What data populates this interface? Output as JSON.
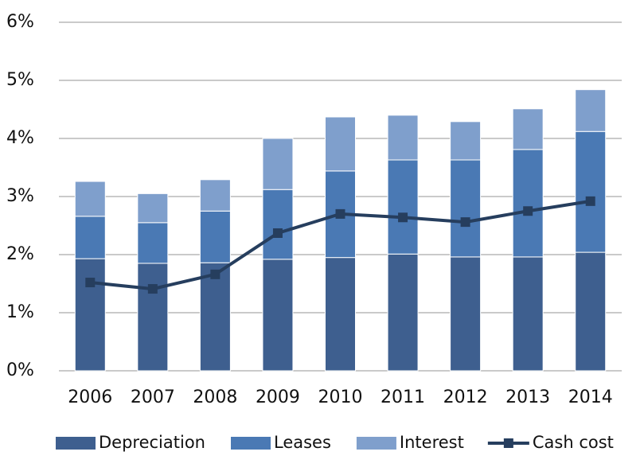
{
  "chart_data": {
    "type": "bar",
    "stacked": true,
    "categories": [
      "2006",
      "2007",
      "2008",
      "2009",
      "2010",
      "2011",
      "2012",
      "2013",
      "2014"
    ],
    "series": [
      {
        "name": "Depreciation",
        "type": "bar",
        "color": "#3e5f8f",
        "values": [
          1.93,
          1.85,
          1.86,
          1.92,
          1.95,
          2.01,
          1.96,
          1.96,
          2.04
        ]
      },
      {
        "name": "Leases",
        "type": "bar",
        "color": "#4a79b4",
        "values": [
          0.73,
          0.7,
          0.89,
          1.2,
          1.49,
          1.62,
          1.67,
          1.85,
          2.08
        ]
      },
      {
        "name": "Interest",
        "type": "bar",
        "color": "#7f9fcc",
        "values": [
          0.6,
          0.5,
          0.54,
          0.88,
          0.93,
          0.77,
          0.66,
          0.7,
          0.72
        ]
      },
      {
        "name": "Cash cost",
        "type": "line",
        "color": "#263e5e",
        "values": [
          1.52,
          1.41,
          1.66,
          2.37,
          2.7,
          2.64,
          2.56,
          2.75,
          2.92
        ]
      }
    ],
    "ylim": [
      0,
      6
    ],
    "yticks": [
      {
        "value": 0,
        "label": "0%"
      },
      {
        "value": 1,
        "label": "1%"
      },
      {
        "value": 2,
        "label": "2%"
      },
      {
        "value": 3,
        "label": "3%"
      },
      {
        "value": 4,
        "label": "4%"
      },
      {
        "value": 5,
        "label": "5%"
      },
      {
        "value": 6,
        "label": "6%"
      }
    ],
    "grid": true,
    "legend": "bottom"
  }
}
